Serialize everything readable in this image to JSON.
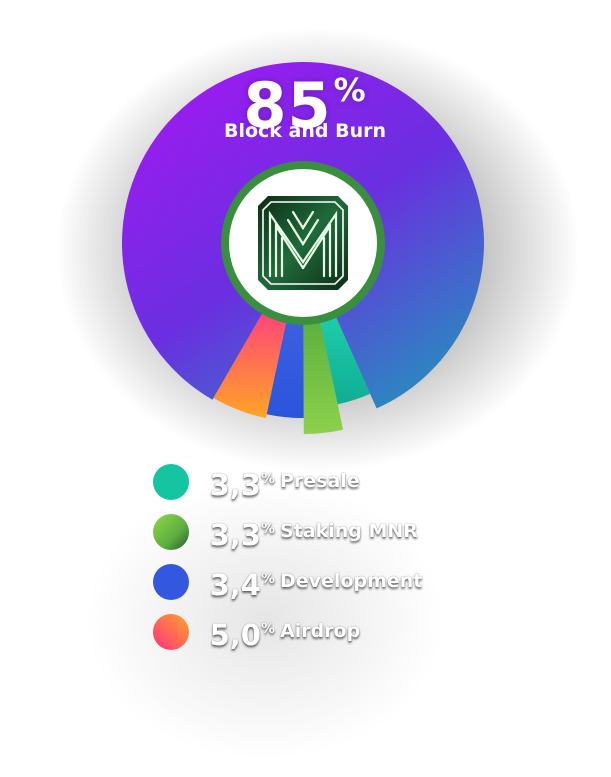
{
  "chart_data": {
    "type": "pie",
    "title": "",
    "unit_symbol": "%",
    "highlight": {
      "value_text": "85",
      "label": "Block and Burn"
    },
    "series": [
      {
        "name": "Block and Burn",
        "value": 85.0,
        "value_text": "85",
        "colors": [
          "#9a1cf0",
          "#5a38d8",
          "#2a7ec8"
        ]
      },
      {
        "name": "Presale",
        "value": 3.3,
        "value_text": "3,3",
        "colors": [
          "#19c9a6",
          "#11b196"
        ]
      },
      {
        "name": "Staking MNR",
        "value": 3.3,
        "value_text": "3,3",
        "colors": [
          "#8bd44a",
          "#2c7a35"
        ]
      },
      {
        "name": "Development",
        "value": 3.4,
        "value_text": "3,4",
        "colors": [
          "#3a63e6",
          "#2553d2"
        ]
      },
      {
        "name": "Airdrop",
        "value": 5.0,
        "value_text": "5,0",
        "colors": [
          "#ff4d7a",
          "#ff9a28"
        ]
      }
    ],
    "legend_order": [
      1,
      2,
      3,
      4
    ],
    "legend_position": "bottom",
    "center_logo": "M"
  },
  "logo": {
    "letter": "M",
    "ring_color": "#3a8f3f",
    "badge_color": "#0f3a1c",
    "badge_light": "#2d8c4a"
  }
}
